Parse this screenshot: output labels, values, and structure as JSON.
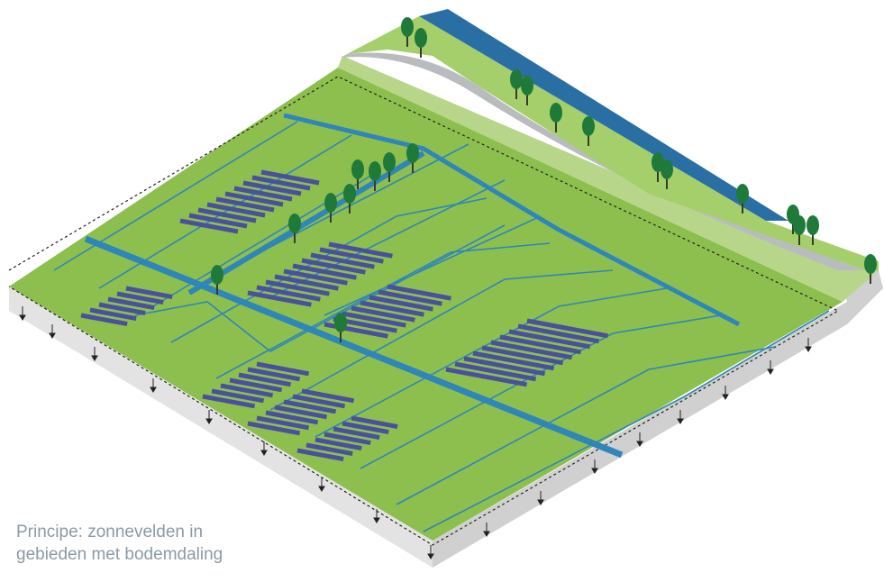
{
  "caption": {
    "lines": [
      "Principe: zonnevelden in",
      "gebieden met bodemdaling"
    ]
  }
}
